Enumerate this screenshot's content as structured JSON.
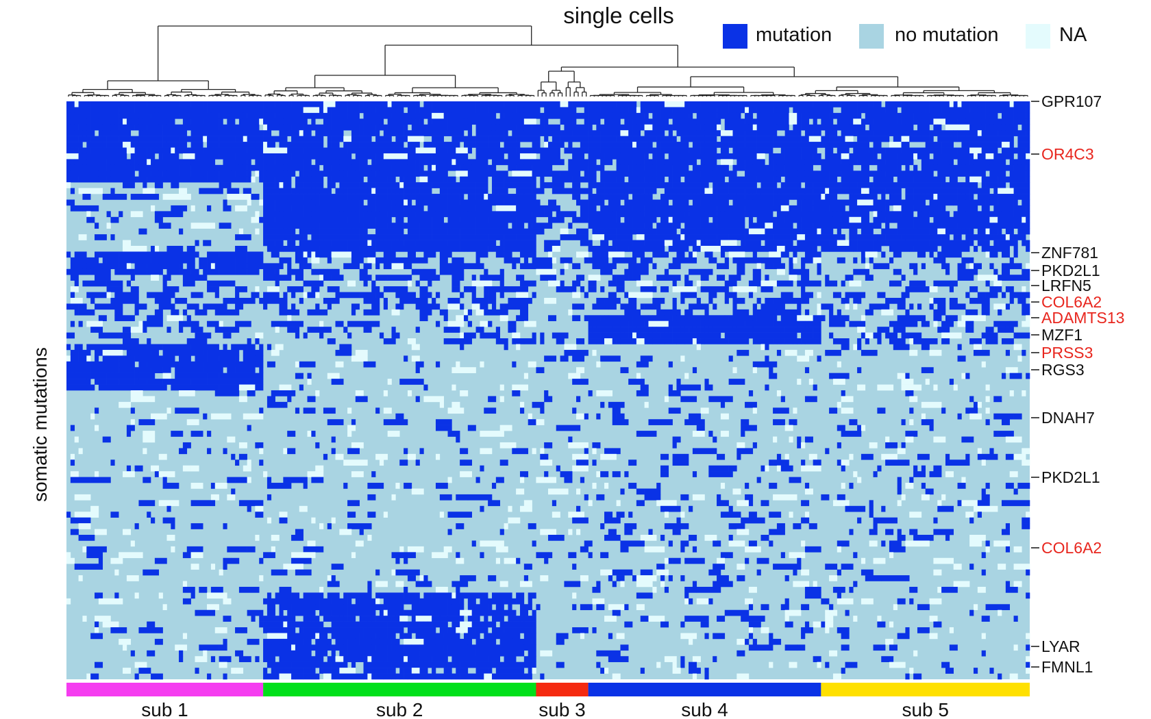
{
  "chart_data": {
    "type": "heatmap",
    "title": "single cells",
    "ylabel": "somatic mutations",
    "legend": {
      "placement": "top-right",
      "items": [
        {
          "label": "mutation",
          "color": "#0a32e6"
        },
        {
          "label": "no mutation",
          "color": "#a9d4e2"
        },
        {
          "label": "NA",
          "color": "#e4fbfd"
        }
      ]
    },
    "row_labels": [
      {
        "text": "GPR107",
        "color": "#111111"
      },
      {
        "text": "OR4C3",
        "color": "#e8261e"
      },
      {
        "text": "ZNF781",
        "color": "#111111"
      },
      {
        "text": "PKD2L1",
        "color": "#111111"
      },
      {
        "text": "LRFN5",
        "color": "#111111"
      },
      {
        "text": "COL6A2",
        "color": "#e8261e"
      },
      {
        "text": "ADAMTS13",
        "color": "#e8261e"
      },
      {
        "text": "MZF1",
        "color": "#111111"
      },
      {
        "text": "PRSS3",
        "color": "#e8261e"
      },
      {
        "text": "RGS3",
        "color": "#111111"
      },
      {
        "text": "DNAH7",
        "color": "#111111"
      },
      {
        "text": "PKD2L1",
        "color": "#111111"
      },
      {
        "text": "COL6A2",
        "color": "#e8261e"
      },
      {
        "text": "LYAR",
        "color": "#111111"
      },
      {
        "text": "FMNL1",
        "color": "#111111"
      }
    ],
    "subclones": [
      {
        "name": "sub  1",
        "color": "#f53df0",
        "fraction": 0.204
      },
      {
        "name": "sub 2",
        "color": "#00e01a",
        "fraction": 0.282
      },
      {
        "name": "sub 3",
        "color": "#f52a10",
        "fraction": 0.056
      },
      {
        "name": "sub 4",
        "color": "#0a32e6",
        "fraction": 0.243
      },
      {
        "name": "sub 5",
        "color": "#ffe000",
        "fraction": 0.215
      }
    ],
    "dendrogram": "hierarchical clustering of single cells (columns)"
  }
}
